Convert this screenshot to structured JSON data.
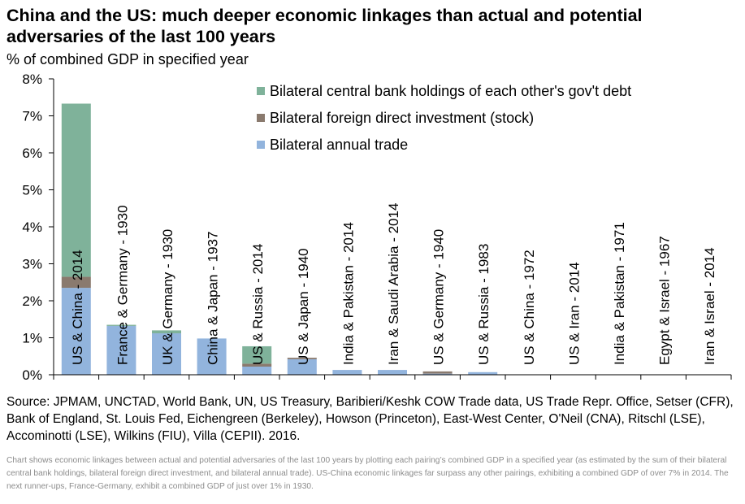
{
  "title": "China and the US: much deeper economic linkages than actual and potential adversaries of the last 100 years",
  "subtitle": "% of combined GDP in specified year",
  "source": "Source: JPMAM, UNCTAD, World Bank, UN, US Treasury, Baribieri/Keshk COW Trade data, US Trade Repr. Office, Setser (CFR), Bank of England, St. Louis Fed, Eichengreen (Berkeley), Howson (Princeton), East-West Center, O'Neil (CNA), Ritschl (LSE), Accominotti (LSE), Wilkins (FIU), Villa (CEPII). 2016.",
  "note": "Chart shows economic linkages between actual and potential adversaries of the last 100 years by plotting each pairing’s combined GDP in a specified year (as estimated by the sum of their bilateral central bank holdings, bilateral foreign direct investment, and bilateral annual trade). US-China economic linkages far surpass any other pairings, exhibiting a combined GDP of over 7% in 2014. The next runner-ups, France-Germany, exhibit a combined GDP of just over 1% in 1930.",
  "chart_data": {
    "type": "bar",
    "stacked": true,
    "ylim": [
      0,
      8
    ],
    "yticks": [
      "0%",
      "1%",
      "2%",
      "3%",
      "4%",
      "5%",
      "6%",
      "7%",
      "8%"
    ],
    "legend_position": "top-right",
    "categories": [
      "US & China - 2014",
      "France & Germany - 1930",
      "UK & Germany - 1930",
      "China & Japan - 1937",
      "US & Russia - 2014",
      "US & Japan - 1940",
      "India & Pakistan - 2014",
      "Iran & Saudi Arabia - 2014",
      "US & Germany - 1940",
      "US & Russia - 1983",
      "US & China - 1972",
      "US & Iran - 2014",
      "India & Pakistan - 1971",
      "Egypt & Israel - 1967",
      "Iran & Israel - 2014"
    ],
    "series": [
      {
        "name": "Bilateral annual trade",
        "color": "#92b4dd",
        "values": [
          2.35,
          1.32,
          1.12,
          0.98,
          0.22,
          0.42,
          0.13,
          0.13,
          0.03,
          0.07,
          0.01,
          0.0,
          0.0,
          0.0,
          0.0
        ]
      },
      {
        "name": "Bilateral foreign direct investment (stock)",
        "color": "#8a7a6e",
        "values": [
          0.3,
          0.0,
          0.0,
          0.0,
          0.08,
          0.04,
          0.0,
          0.0,
          0.06,
          0.0,
          0.0,
          0.0,
          0.0,
          0.0,
          0.0
        ]
      },
      {
        "name": "Bilateral central bank holdings of each other's gov't debt",
        "color": "#7fb29a",
        "values": [
          4.68,
          0.03,
          0.08,
          0.0,
          0.47,
          0.0,
          0.0,
          0.0,
          0.0,
          0.0,
          0.0,
          0.0,
          0.0,
          0.0,
          0.0
        ]
      }
    ]
  }
}
